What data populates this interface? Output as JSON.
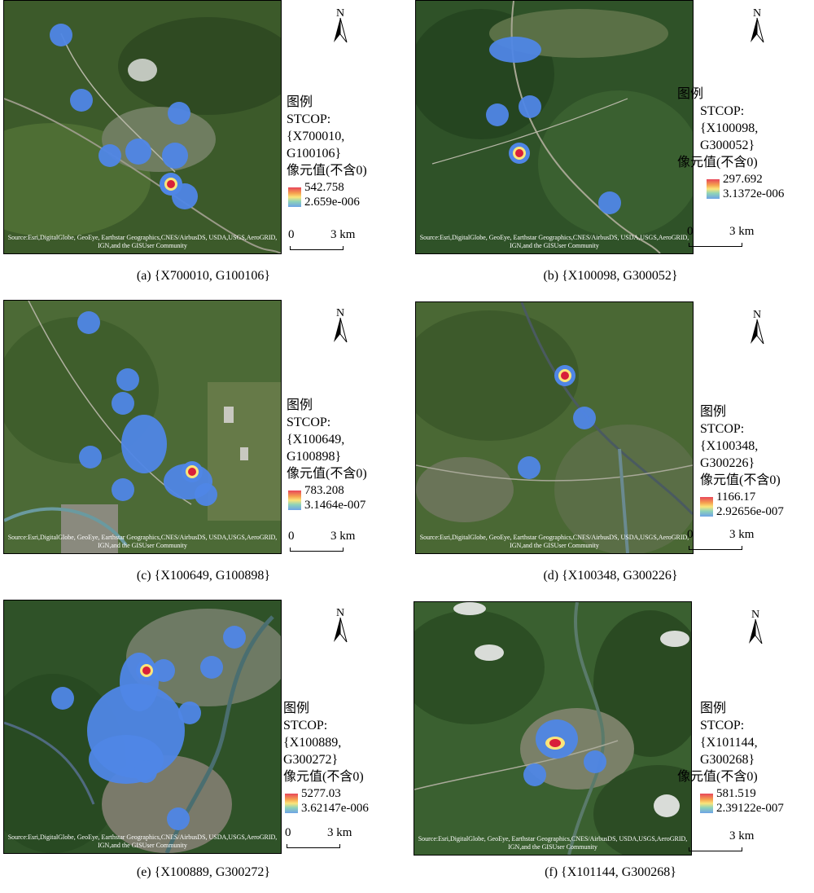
{
  "source_text": "Source:Esri,DigitalGlobe, GeoEye, Earthstar Geographics,CNES/AirbusDS, USDA,USGS,AeroGRID, IGN,and the GISUser Community",
  "north_label": "N",
  "legend_title": "图例",
  "layer_label": "STCOP:",
  "field_label": "像元值(不含0)",
  "scale": {
    "zero": "0",
    "length": "3 km"
  },
  "panels": [
    {
      "id": "a",
      "caption": "(a) {X700010, G100106}",
      "layer_line1": "{X700010,",
      "layer_line2": "G100106}",
      "max": "542.758",
      "min": "2.659e-006"
    },
    {
      "id": "b",
      "caption": "(b) {X100098, G300052}",
      "layer_line1": "{X100098,",
      "layer_line2": "G300052}",
      "max": "297.692",
      "min": "3.1372e-006"
    },
    {
      "id": "c",
      "caption": "(c) {X100649, G100898}",
      "layer_line1": "{X100649,",
      "layer_line2": "G100898}",
      "max": "783.208",
      "min": "3.1464e-007"
    },
    {
      "id": "d",
      "caption": "(d) {X100348, G300226}",
      "layer_line1": "{X100348,",
      "layer_line2": "G300226}",
      "max": "1166.17",
      "min": "2.92656e-007"
    },
    {
      "id": "e",
      "caption": "(e) {X100889, G300272}",
      "layer_line1": "{X100889,",
      "layer_line2": "G300272}",
      "max": "5277.03",
      "min": "3.62147e-006"
    },
    {
      "id": "f",
      "caption": "(f) {X101144, G300268}",
      "layer_line1": "{X101144,",
      "layer_line2": "G300268}",
      "max": "581.519",
      "min": "2.39122e-007"
    }
  ],
  "colors": {
    "heat_low": "#4f86e6",
    "heat_mid": "#fbe57a",
    "heat_high": "#d8203a",
    "vegetation": "#3f5a2c"
  }
}
